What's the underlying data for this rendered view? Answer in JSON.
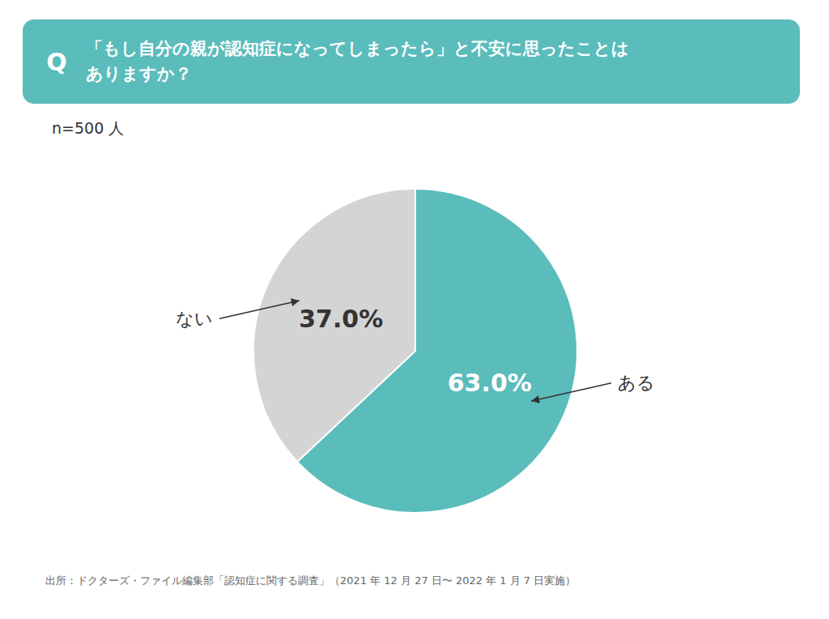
{
  "chart_data": {
    "type": "pie",
    "title_mark": "Q",
    "title": "「もし自分の親が認知症になってしまったら」と不安に思ったことは\nありますか？",
    "subtitle": "n=500 人",
    "categories": [
      "ある",
      "ない"
    ],
    "values": [
      63.0,
      37.0
    ],
    "value_labels": [
      "63.0%",
      "37.0%"
    ],
    "colors": [
      "#5bbcbc",
      "#d4d4d4"
    ],
    "data_labels": true,
    "legend": false,
    "source": "出所：ドクターズ・ファイル編集部「認知症に関する調査」（2021 年 12 月 27 日〜 2022 年 1 月 7 日実施）"
  }
}
